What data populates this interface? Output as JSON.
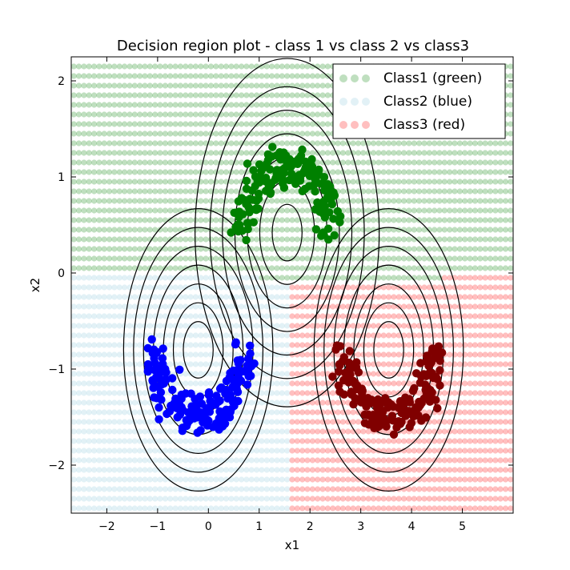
{
  "chart_data": {
    "type": "scatter",
    "title": "Decision region plot - class 1 vs class 2 vs class3",
    "xlabel": "x1",
    "ylabel": "x2",
    "xlim": [
      -2.7,
      6.0
    ],
    "ylim": [
      -2.5,
      2.25
    ],
    "xticks": [
      -2,
      -1,
      0,
      1,
      2,
      3,
      4,
      5
    ],
    "yticks": [
      -2,
      -1,
      0,
      1,
      2
    ],
    "grid": false,
    "legend_position": "top-right",
    "legend": [
      {
        "label": "Class1 (green)",
        "color": "#008000"
      },
      {
        "label": "Class2 (blue)",
        "color": "#add8e6"
      },
      {
        "label": "Class3 (red)",
        "color": "#ff0000"
      }
    ],
    "series": [
      {
        "name": "Class1 (green)",
        "color": "#008000",
        "center": [
          1.55,
          0.42
        ],
        "moon": {
          "orientation": "up",
          "radius": 1.4,
          "spread": 0.12
        }
      },
      {
        "name": "Class2 (blue)",
        "color": "#0000ff",
        "center": [
          -0.2,
          -0.8
        ],
        "moon": {
          "orientation": "down",
          "radius": 1.4,
          "spread": 0.12
        }
      },
      {
        "name": "Class3 (red)",
        "color": "#800000",
        "center": [
          3.55,
          -0.8
        ],
        "moon": {
          "orientation": "down",
          "radius": 1.4,
          "spread": 0.12
        }
      }
    ],
    "decision_regions": {
      "grid_step": 0.1,
      "colors": {
        "class1": "#008000",
        "class2": "#add8e6",
        "class3": "#ff0000"
      }
    },
    "contours": [
      {
        "center": [
          1.55,
          0.42
        ],
        "radii": [
          0.3,
          0.55,
          0.8,
          1.05,
          1.3,
          1.55,
          1.85
        ]
      },
      {
        "center": [
          -0.2,
          -0.8
        ],
        "radii": [
          0.3,
          0.5,
          0.7,
          0.9,
          1.1,
          1.3,
          1.5
        ]
      },
      {
        "center": [
          3.55,
          -0.8
        ],
        "radii": [
          0.3,
          0.5,
          0.7,
          0.9,
          1.1,
          1.3,
          1.5
        ]
      }
    ]
  }
}
